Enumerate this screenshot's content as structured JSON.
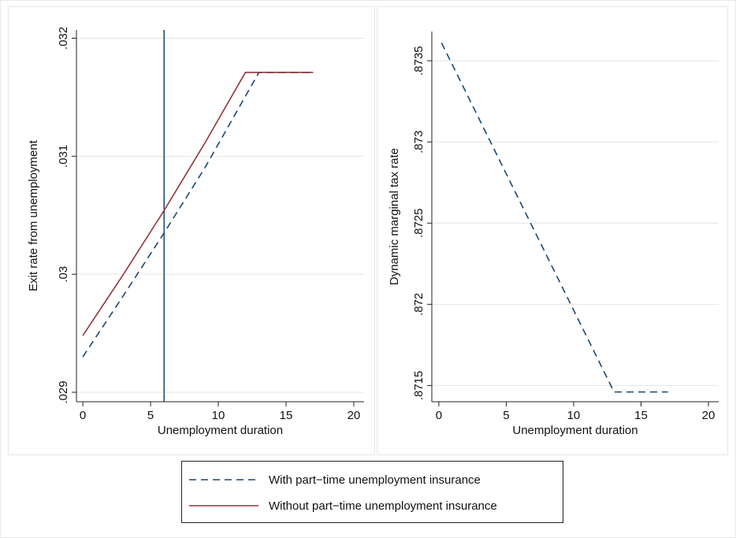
{
  "chart_data": [
    {
      "type": "line",
      "xlabel": "Unemployment duration",
      "ylabel": "Exit rate from unemployment",
      "xlim": [
        -0.47,
        20.76
      ],
      "ylim": [
        0.02892,
        0.03207
      ],
      "xticks": [
        0,
        5,
        10,
        15,
        20
      ],
      "yticks": [
        {
          "value": 0.029,
          "label": ".029"
        },
        {
          "value": 0.03,
          "label": ".03"
        },
        {
          "value": 0.031,
          "label": ".031"
        },
        {
          "value": 0.032,
          "label": ".032"
        }
      ],
      "grid": true,
      "vline": 6,
      "vline_color": "#1a476f",
      "series": [
        {
          "name": "With part−time unemployment insurance",
          "color": "#1a476f",
          "line_style": "dashed",
          "x": [
            0,
            3,
            6,
            9,
            13,
            17
          ],
          "values": [
            0.0293,
            0.02982,
            0.03035,
            0.0309,
            0.03171,
            0.03171
          ]
        },
        {
          "name": "Without part−time unemployment insurance",
          "color": "#90353b",
          "line_style": "solid",
          "x": [
            0,
            3,
            6,
            9,
            12,
            17
          ],
          "values": [
            0.02948,
            0.03,
            0.03054,
            0.03111,
            0.03171,
            0.03171
          ]
        }
      ]
    },
    {
      "type": "line",
      "xlabel": "Unemployment duration",
      "ylabel": "Dynamic marginal tax rate",
      "xlim": [
        -0.52,
        20.76
      ],
      "ylim": [
        0.8714,
        0.87368
      ],
      "xticks": [
        0,
        5,
        10,
        15,
        20
      ],
      "yticks": [
        {
          "value": 0.8715,
          "label": ".8715"
        },
        {
          "value": 0.872,
          "label": ".872"
        },
        {
          "value": 0.8725,
          "label": ".8725"
        },
        {
          "value": 0.873,
          "label": ".873"
        },
        {
          "value": 0.8735,
          "label": ".8735"
        }
      ],
      "grid": true,
      "series": [
        {
          "color": "#1a476f",
          "line_style": "dashed",
          "x": [
            0.2,
            13,
            17
          ],
          "values": [
            0.87361,
            0.87146,
            0.87146
          ]
        }
      ]
    }
  ]
}
